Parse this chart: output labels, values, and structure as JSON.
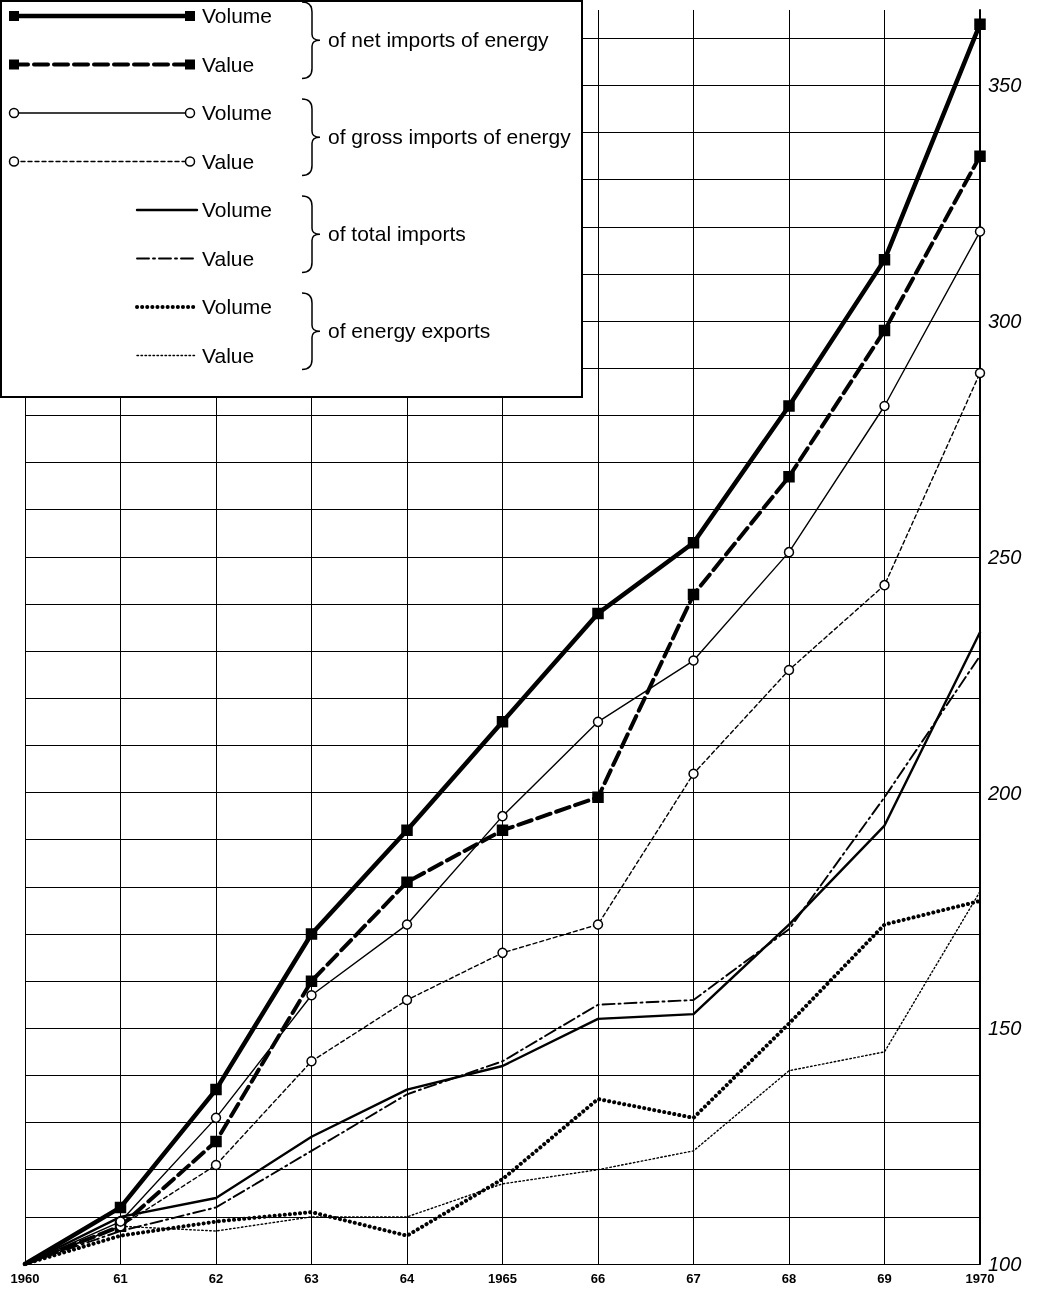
{
  "chart_data": {
    "type": "line",
    "categories": [
      "1960",
      "61",
      "62",
      "63",
      "64",
      "1965",
      "66",
      "67",
      "68",
      "69",
      "1970"
    ],
    "series": [
      {
        "name": "Volume",
        "color": "#000000",
        "marker": "square",
        "line_style": "solid",
        "values": [
          100,
          112,
          137,
          170,
          192,
          215,
          238,
          253,
          282,
          313,
          363
        ]
      },
      {
        "name": "Value",
        "color": "#000000",
        "marker": "square",
        "line_style": "dashed",
        "values": [
          100,
          108,
          126,
          160,
          181,
          192,
          199,
          242,
          267,
          298,
          335
        ]
      },
      {
        "name": "Volume",
        "color": "#000000",
        "marker": "circle",
        "line_style": "solid",
        "values": [
          100,
          109,
          131,
          157,
          172,
          195,
          215,
          228,
          251,
          282,
          319
        ]
      },
      {
        "name": "Value",
        "color": "#000000",
        "marker": "circle",
        "line_style": "dotted",
        "values": [
          100,
          108,
          121,
          143,
          156,
          166,
          172,
          204,
          226,
          244,
          289
        ]
      },
      {
        "name": "Volume",
        "color": "#000000",
        "marker": "none",
        "line_style": "solid",
        "values": [
          100,
          110,
          114,
          127,
          137,
          142,
          152,
          153,
          172,
          193,
          234
        ]
      },
      {
        "name": "Value",
        "color": "#000000",
        "marker": "none",
        "line_style": "dashed",
        "values": [
          100,
          107,
          112,
          124,
          136,
          143,
          155,
          156,
          171,
          199,
          229
        ]
      },
      {
        "name": "Volume",
        "color": "#000000",
        "marker": "none",
        "line_style": "dotted",
        "values": [
          100,
          106,
          109,
          111,
          106,
          118,
          135,
          131,
          151,
          172,
          177
        ]
      },
      {
        "name": "Value",
        "color": "#000000",
        "marker": "none",
        "line_style": "dotted",
        "values": [
          100,
          108,
          107,
          110,
          110,
          117,
          120,
          124,
          141,
          145,
          179
        ]
      }
    ],
    "annotations": [
      "of net imports of energy",
      "of gross imports of energy",
      "of total imports",
      "of energy exports"
    ],
    "ylim": [
      100,
      366
    ],
    "yticks": [
      100,
      {
        "value": 110,
        "label": null
      },
      {
        "value": 120,
        "label": null
      },
      {
        "value": 130,
        "label": null
      },
      {
        "value": 140,
        "label": null
      },
      150,
      {
        "value": 160,
        "label": null
      },
      {
        "value": 170,
        "label": null
      },
      {
        "value": 180,
        "label": null
      },
      {
        "value": 190,
        "label": null
      },
      200,
      {
        "value": 210,
        "label": null
      },
      {
        "value": 220,
        "label": null
      },
      {
        "value": 230,
        "label": null
      },
      {
        "value": 240,
        "label": null
      },
      250,
      {
        "value": 260,
        "label": null
      },
      {
        "value": 270,
        "label": null
      },
      {
        "value": 280,
        "label": null
      },
      {
        "value": 290,
        "label": null
      },
      300,
      {
        "value": 310,
        "label": null
      },
      {
        "value": 320,
        "label": null
      },
      {
        "value": 330,
        "label": null
      },
      {
        "value": 340,
        "label": null
      },
      350,
      {
        "value": 360,
        "label": null
      }
    ],
    "grid": true,
    "legend": "top left"
  }
}
